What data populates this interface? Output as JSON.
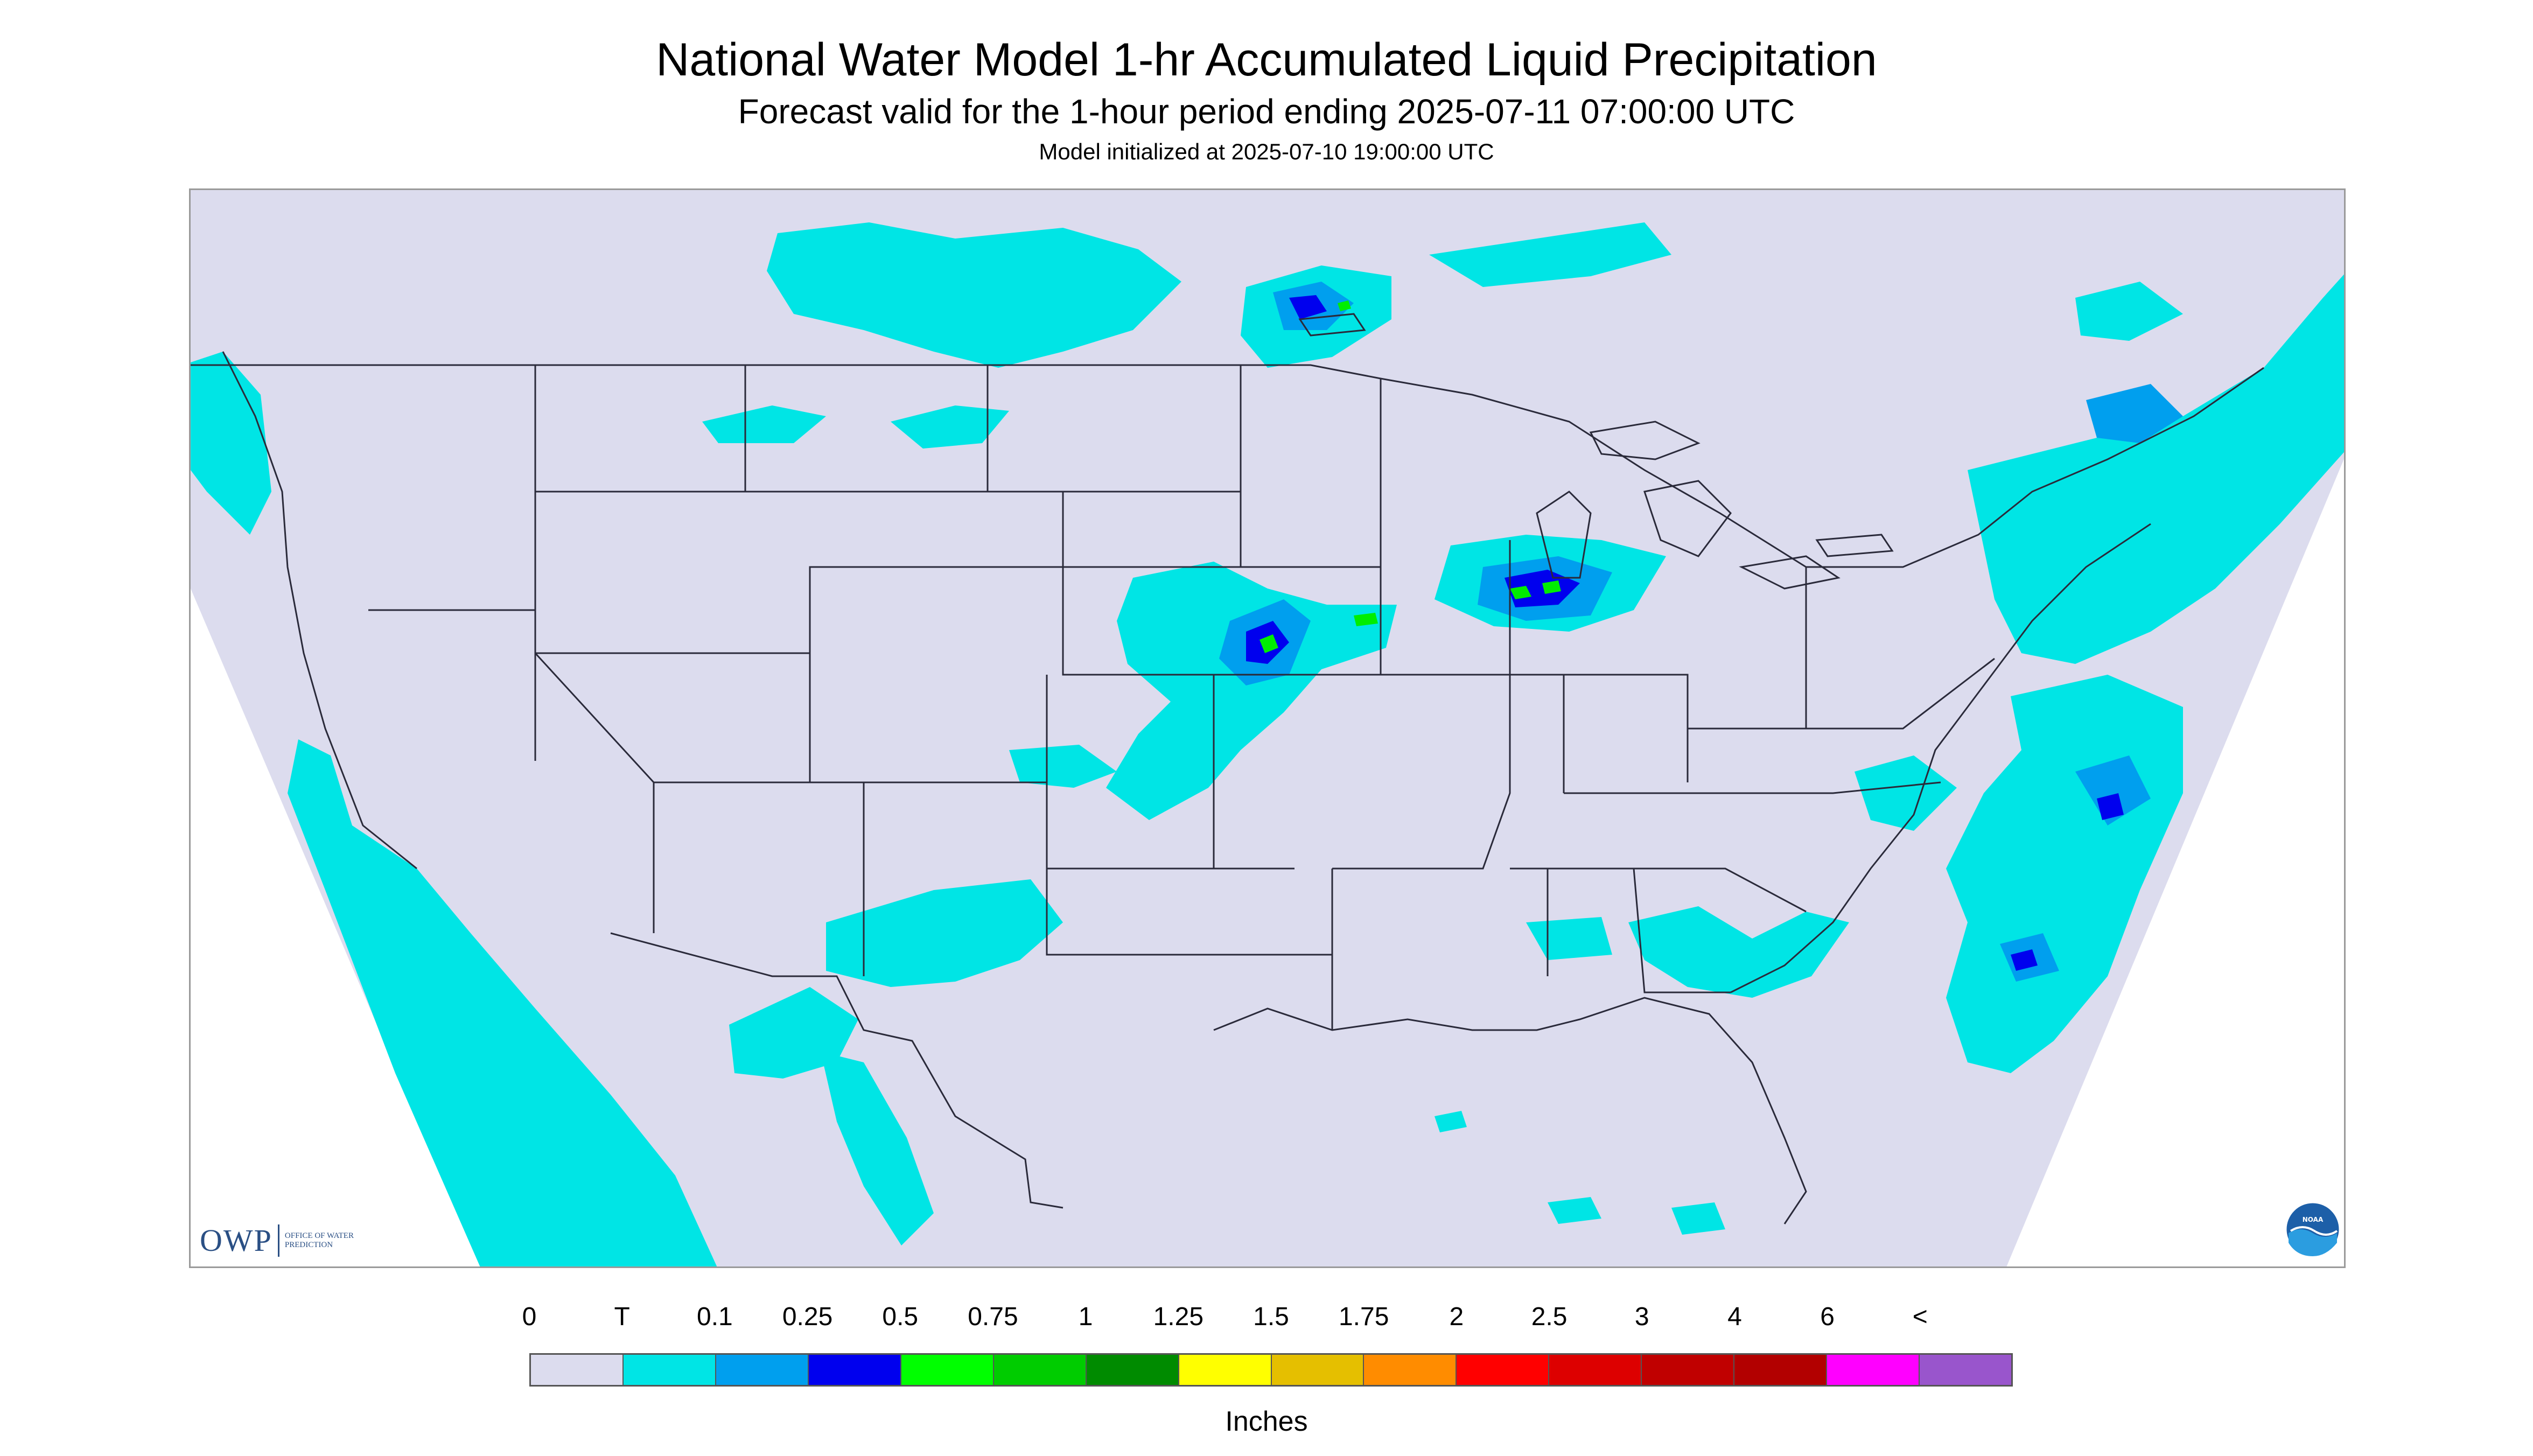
{
  "header": {
    "title": "National Water Model 1-hr Accumulated Liquid Precipitation",
    "subtitle": "Forecast valid for the 1-hour period ending 2025-07-11 07:00:00 UTC",
    "init_line": "Model initialized at 2025-07-10 19:00:00 UTC"
  },
  "map": {
    "background_color": "#dcdcee",
    "boundary_color": "#2a2a3a",
    "precip_colors": {
      "trace": "#00e5e5",
      "light": "#009fee",
      "moderate": "#0000ee",
      "heavy": "#00ee00"
    }
  },
  "logos": {
    "owp_mark": "OWP",
    "owp_subtitle": "OFFICE OF WATER PREDICTION",
    "noaa_mark": "NOAA"
  },
  "legend": {
    "labels": [
      "0",
      "T",
      "0.1",
      "0.25",
      "0.5",
      "0.75",
      "1",
      "1.25",
      "1.5",
      "1.75",
      "2",
      "2.5",
      "3",
      "4",
      "6",
      "<"
    ],
    "colors": [
      "#dcdcee",
      "#00e5e5",
      "#009fee",
      "#0000ee",
      "#00ff00",
      "#00cc00",
      "#008b00",
      "#ffff00",
      "#e5bf00",
      "#ff8c00",
      "#ff0000",
      "#dd0000",
      "#c00000",
      "#b20000",
      "#ff00ff",
      "#9955cc"
    ],
    "units": "Inches"
  }
}
